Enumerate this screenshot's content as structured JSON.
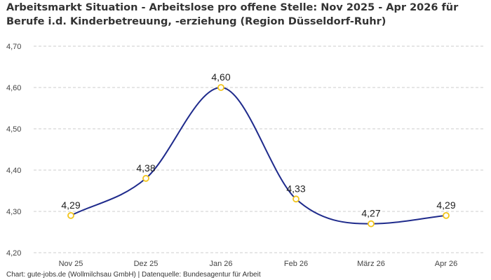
{
  "title_line1": "Arbeitsmarkt Situation - Arbeitslose pro offene Stelle: Nov 2025 - Apr 2026 für",
  "title_line2": "Berufe i.d. Kinderbetreuung, -erziehung (Region Düsseldorf-Ruhr)",
  "footer": "Chart: gute-jobs.de (Wollmilchsau GmbH) | Datenquelle: Bundesagentur für Arbeit",
  "colors": {
    "line": "#1f2b8c",
    "marker_stroke": "#f2c51c",
    "marker_fill": "#ffffff",
    "grid": "#cccccc"
  },
  "chart_data": {
    "type": "line",
    "categories": [
      "Nov 25",
      "Dez 25",
      "Jan 26",
      "Feb 26",
      "März 26",
      "Apr 26"
    ],
    "values": [
      4.29,
      4.38,
      4.6,
      4.33,
      4.27,
      4.29
    ],
    "data_labels": [
      "4,29",
      "4,38",
      "4,60",
      "4,33",
      "4,27",
      "4,29"
    ],
    "y_ticks": [
      4.2,
      4.3,
      4.4,
      4.5,
      4.6,
      4.7
    ],
    "y_tick_labels": [
      "4,20",
      "4,30",
      "4,40",
      "4,50",
      "4,60",
      "4,70"
    ],
    "ylim": [
      4.2,
      4.7
    ],
    "grid": true,
    "smooth": true
  }
}
